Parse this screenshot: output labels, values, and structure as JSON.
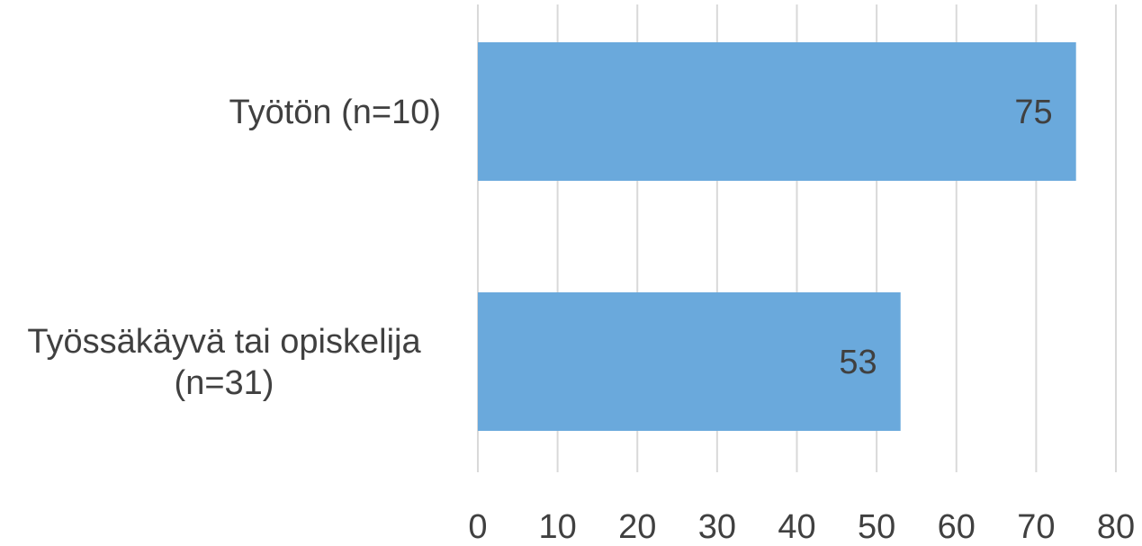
{
  "chart_data": {
    "type": "bar",
    "orientation": "horizontal",
    "categories": [
      "Työtön (n=10)",
      "Työssäkäyvä tai opiskelija (n=31)"
    ],
    "category_lines": [
      [
        "Työtön (n=10)"
      ],
      [
        "Työssäkäyvä tai opiskelija",
        "(n=31)"
      ]
    ],
    "values": [
      75,
      53
    ],
    "data_labels": [
      "75",
      "53"
    ],
    "title": "",
    "xlabel": "",
    "ylabel": "",
    "xlim": [
      0,
      80
    ],
    "xticks": [
      0,
      10,
      20,
      30,
      40,
      50,
      60,
      70,
      80
    ],
    "grid": "vertical",
    "legend": "none",
    "bar_color": "#6aa9dc",
    "grid_color": "#d9d9d9",
    "text_color": "#404040"
  }
}
